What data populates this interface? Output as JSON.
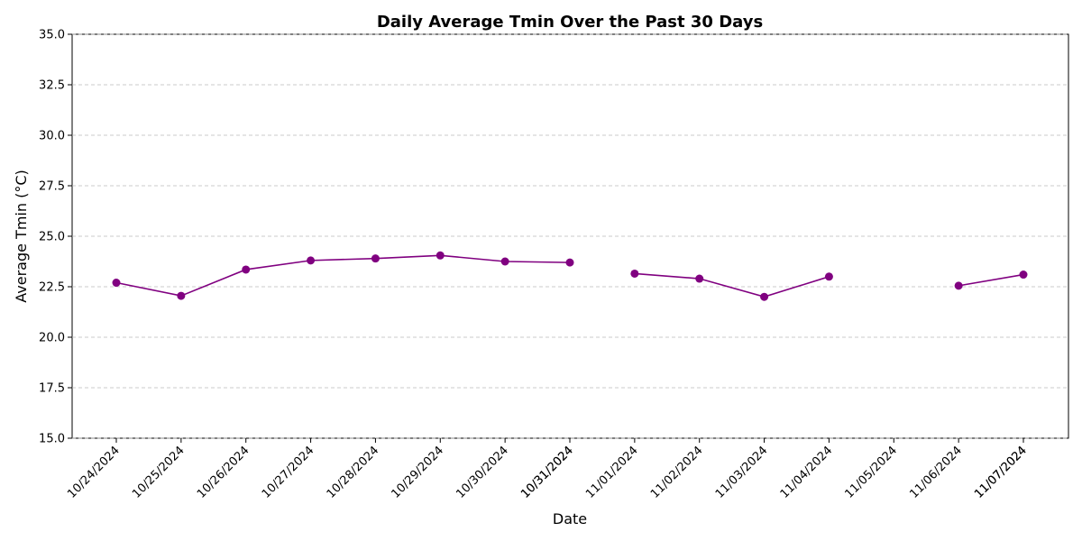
{
  "chart_data": {
    "type": "line",
    "title": "Daily Average Tmin Over the Past 30 Days",
    "x_label": "Date",
    "y_label": "Average Tmin (°C)",
    "categories": [
      "10/24/2024",
      "10/25/2024",
      "10/26/2024",
      "10/27/2024",
      "10/28/2024",
      "10/29/2024",
      "10/30/2024",
      "10/31/2024",
      "10/31/2024",
      "11/01/2024",
      "11/02/2024",
      "11/03/2024",
      "11/04/2024",
      "11/05/2024",
      "11/06/2024",
      "11/07/2024",
      "11/07/2024"
    ],
    "values": [
      22.7,
      22.05,
      23.35,
      23.8,
      23.9,
      24.05,
      23.75,
      23.7,
      null,
      23.15,
      22.9,
      22.0,
      23.0,
      null,
      22.55,
      23.1,
      null
    ],
    "color": "#800080",
    "ylim": [
      15,
      35
    ],
    "yticks": [
      {
        "value": 15,
        "label": "15.0"
      },
      17.5,
      {
        "value": 20,
        "label": "20.0"
      },
      22.5,
      {
        "value": 25,
        "label": "25.0"
      },
      27.5,
      {
        "value": 30,
        "label": "30.0"
      },
      32.5,
      {
        "value": 35,
        "label": "35.0"
      }
    ],
    "grid": true
  }
}
